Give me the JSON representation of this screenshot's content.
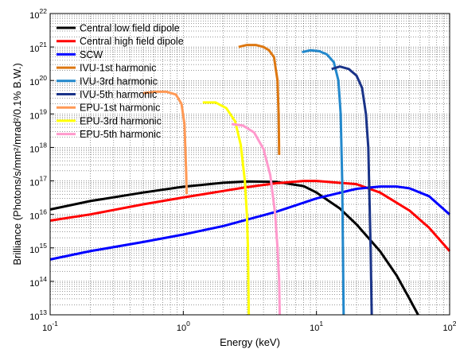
{
  "chart_data": {
    "type": "line",
    "xlabel": "Energy (keV)",
    "ylabel": "Brilliance (Photons/s/mm²/mrad²/0.1% B.W.)",
    "xscale": "log",
    "yscale": "log",
    "xlim": [
      0.1,
      100
    ],
    "ylim": [
      10000000000000.0,
      1e+22
    ],
    "grid": true,
    "legend_position": "top-left",
    "x_ticks": [
      0.1,
      1,
      10,
      100
    ],
    "x_tick_labels": [
      [
        "10",
        "-1"
      ],
      [
        "10",
        "0"
      ],
      [
        "10",
        "1"
      ],
      [
        "10",
        "2"
      ]
    ],
    "y_ticks": [
      10000000000000.0,
      100000000000000.0,
      1000000000000000.0,
      1e+16,
      1e+17,
      1e+18,
      1e+19,
      1e+20,
      1e+21,
      1e+22
    ],
    "y_tick_labels": [
      [
        "10",
        "13"
      ],
      [
        "10",
        "14"
      ],
      [
        "10",
        "15"
      ],
      [
        "10",
        "16"
      ],
      [
        "10",
        "17"
      ],
      [
        "10",
        "18"
      ],
      [
        "10",
        "19"
      ],
      [
        "10",
        "20"
      ],
      [
        "10",
        "21"
      ],
      [
        "10",
        "22"
      ]
    ],
    "series": [
      {
        "name": "Central low field dipole",
        "color": "#000000",
        "x": [
          0.1,
          0.2,
          0.5,
          1,
          2,
          3,
          5,
          8,
          10,
          15,
          20,
          30,
          40,
          50,
          58
        ],
        "y": [
          1.4e+16,
          2.5e+16,
          4.5e+16,
          6.7e+16,
          8.8e+16,
          9.6e+16,
          9.4e+16,
          7e+16,
          4.5e+16,
          1.5e+16,
          5000000000000000.0,
          800000000000000.0,
          150000000000000.0,
          30000000000000.0,
          10000000000000.0
        ]
      },
      {
        "name": "Central high field dipole",
        "color": "#ff0000",
        "x": [
          0.1,
          0.2,
          0.5,
          1,
          2,
          3,
          5,
          8,
          10,
          20,
          30,
          50,
          70,
          100
        ],
        "y": [
          6500000000000000.0,
          1e+16,
          2e+16,
          3.2e+16,
          5e+16,
          6.5e+16,
          8.5e+16,
          1e+17,
          1e+17,
          8e+16,
          4.5e+16,
          1.3e+16,
          4000000000000000.0,
          800000000000000.0
        ]
      },
      {
        "name": "SCW",
        "color": "#0000ff",
        "x": [
          0.1,
          0.2,
          0.5,
          1,
          2,
          5,
          10,
          20,
          30,
          40,
          50,
          70,
          100
        ],
        "y": [
          450000000000000.0,
          800000000000000.0,
          1500000000000000.0,
          2500000000000000.0,
          4500000000000000.0,
          1.2e+16,
          3e+16,
          5.8e+16,
          6.8e+16,
          6.8e+16,
          6e+16,
          3.5e+16,
          1e+16
        ]
      },
      {
        "name": "IVU-1st harmonic",
        "color": "#dd7711",
        "x": [
          2.6,
          3,
          3.5,
          4,
          4.4,
          4.8,
          5.1,
          5.2,
          5.25
        ],
        "y": [
          1e+21,
          1.15e+21,
          1.15e+21,
          1e+21,
          8e+20,
          5e+20,
          1e+20,
          1e+19,
          6e+17
        ]
      },
      {
        "name": "IVU-3rd harmonic",
        "color": "#2288cc",
        "x": [
          7.8,
          9,
          10.5,
          12,
          13.5,
          14.6,
          15.2,
          15.6,
          15.8,
          16
        ],
        "y": [
          7e+20,
          8e+20,
          7.5e+20,
          6e+20,
          3.5e+20,
          1e+20,
          1e+19,
          1e+17,
          1000000000000000.0,
          10000000000000.0
        ]
      },
      {
        "name": "IVU-5th harmonic",
        "color": "#1a3388",
        "x": [
          13,
          15,
          17.5,
          20,
          22,
          23.5,
          24.5,
          25.5,
          26
        ],
        "y": [
          2.2e+20,
          2.6e+20,
          2.2e+20,
          1.4e+20,
          6e+19,
          1e+19,
          1e+18,
          1000000000000000.0,
          10000000000000.0
        ]
      },
      {
        "name": "EPU-1st harmonic",
        "color": "#ff9955",
        "x": [
          0.5,
          0.62,
          0.75,
          0.88,
          0.97,
          1.02,
          1.05,
          1.06
        ],
        "y": [
          4.2e+19,
          4.6e+19,
          4.6e+19,
          3.8e+19,
          2e+19,
          5e+18,
          2e+17,
          4e+16
        ]
      },
      {
        "name": "EPU-3rd harmonic",
        "color": "#ffff00",
        "x": [
          1.4,
          1.75,
          2.1,
          2.45,
          2.7,
          2.9,
          3,
          3.06,
          3.1
        ],
        "y": [
          2.2e+19,
          2.2e+19,
          1.5e+19,
          6e+18,
          1.2e+18,
          1e+17,
          1e+16,
          1000000000000000.0,
          10000000000000.0
        ]
      },
      {
        "name": "EPU-5th harmonic",
        "color": "#ff99cc",
        "x": [
          2.3,
          2.8,
          3.4,
          4,
          4.5,
          4.9,
          5.1,
          5.25,
          5.3
        ],
        "y": [
          5e+18,
          4.5e+18,
          2.8e+18,
          9e+17,
          1.5e+17,
          1e+16,
          1000000000000000.0,
          100000000000000.0,
          10000000000000.0
        ]
      }
    ]
  }
}
